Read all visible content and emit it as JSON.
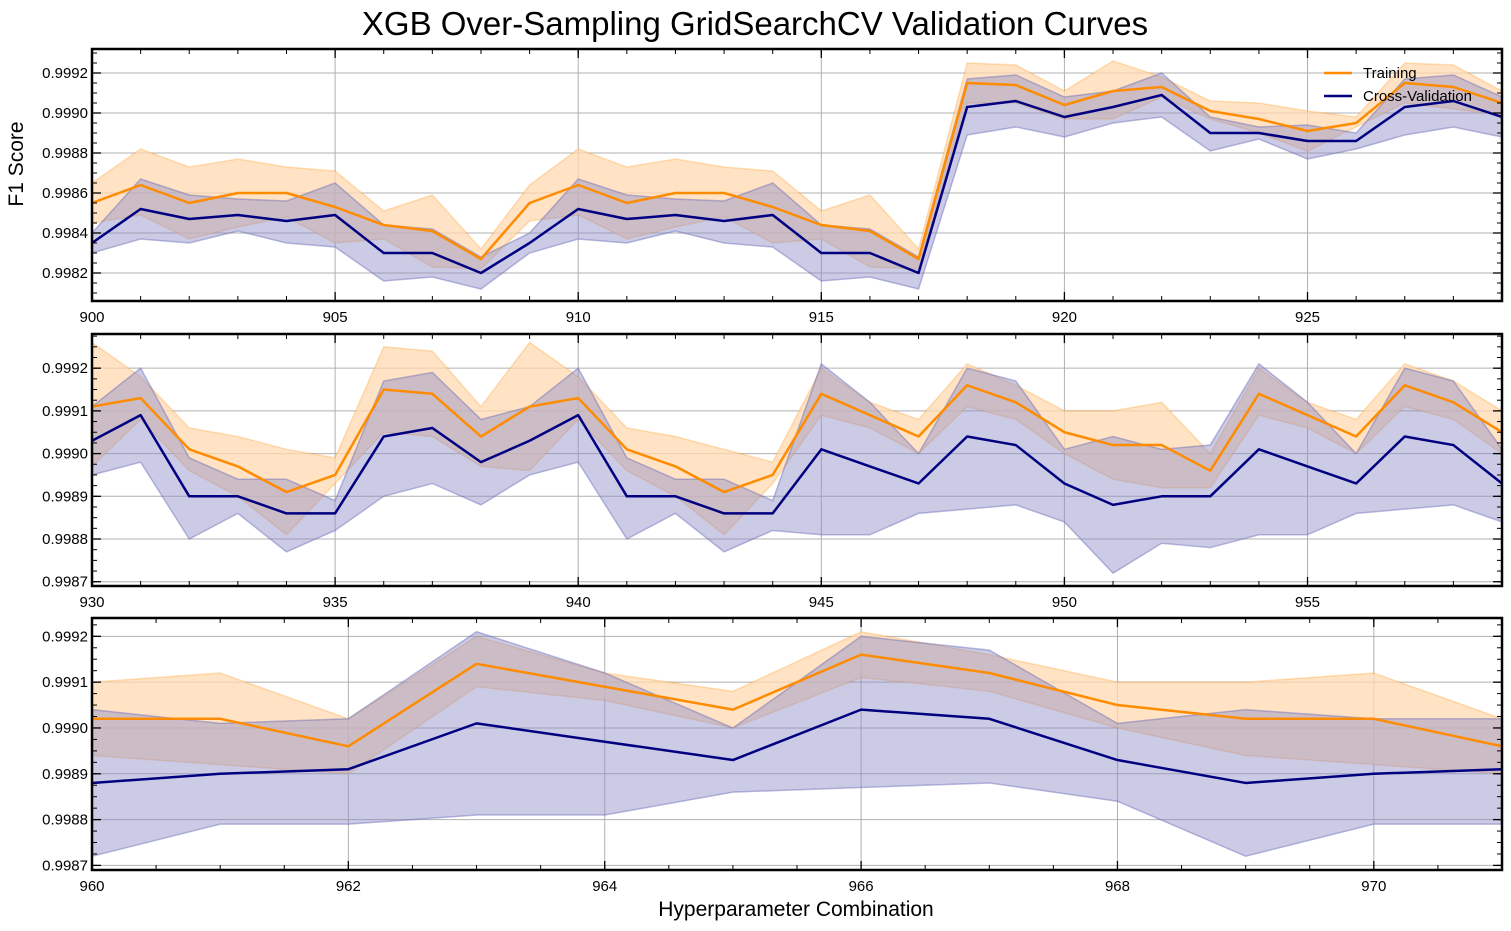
{
  "chart_data": {
    "type": "line",
    "title": "XGB Over-Sampling GridSearchCV Validation Curves",
    "xlabel": "Hyperparameter Combination",
    "ylabel": "F1 Score",
    "grid": true,
    "legend": {
      "placement": "top-right",
      "entries": [
        {
          "name": "Training",
          "color": "#ff8c00"
        },
        {
          "name": "Cross-Validation",
          "color": "#000080"
        }
      ]
    },
    "colors": {
      "training": "#ff8c00",
      "training_band": "#ffdab0",
      "cv": "#000080",
      "cv_band": "#8c8cc8"
    },
    "panels": [
      {
        "x": [
          900,
          901,
          902,
          903,
          904,
          905,
          906,
          907,
          908,
          909,
          910,
          911,
          912,
          913,
          914,
          915,
          916,
          917,
          918,
          919,
          920,
          921,
          922,
          923,
          924,
          925,
          926,
          927,
          928,
          929
        ],
        "xlim": [
          900,
          929
        ],
        "ylim": [
          0.99806,
          0.99932
        ],
        "xticks": [
          900,
          905,
          910,
          915,
          920,
          925
        ],
        "yticks": [
          0.9982,
          0.9984,
          0.9986,
          0.9988,
          0.999,
          0.9992
        ],
        "ytick_labels": [
          "0.9982",
          "0.9984",
          "0.9986",
          "0.9988",
          "0.9990",
          "0.9992"
        ],
        "train_mean": [
          0.99855,
          0.99864,
          0.99855,
          0.9986,
          0.9986,
          0.99853,
          0.99844,
          0.99841,
          0.99827,
          0.99855,
          0.99864,
          0.99855,
          0.9986,
          0.9986,
          0.99853,
          0.99844,
          0.99841,
          0.99827,
          0.99915,
          0.99914,
          0.99904,
          0.99911,
          0.99913,
          0.99901,
          0.99897,
          0.99891,
          0.99895,
          0.99915,
          0.99913,
          0.99905
        ],
        "train_upper": [
          0.99865,
          0.99882,
          0.99873,
          0.99877,
          0.99873,
          0.99871,
          0.99851,
          0.99859,
          0.99832,
          0.99864,
          0.99882,
          0.99873,
          0.99877,
          0.99873,
          0.99871,
          0.99851,
          0.99859,
          0.99832,
          0.99925,
          0.99924,
          0.99911,
          0.99926,
          0.99918,
          0.99906,
          0.99905,
          0.99901,
          0.99898,
          0.99925,
          0.99924,
          0.99911
        ],
        "train_lower": [
          0.99845,
          0.99849,
          0.99837,
          0.99843,
          0.99848,
          0.99835,
          0.99837,
          0.99823,
          0.99822,
          0.99846,
          0.99849,
          0.99837,
          0.99843,
          0.99848,
          0.99835,
          0.99837,
          0.99823,
          0.99822,
          0.99905,
          0.99905,
          0.99897,
          0.99897,
          0.99908,
          0.99897,
          0.9989,
          0.99881,
          0.99893,
          0.99905,
          0.99902,
          0.99899
        ],
        "cv_mean": [
          0.99835,
          0.99852,
          0.99847,
          0.99849,
          0.99846,
          0.99849,
          0.9983,
          0.9983,
          0.9982,
          0.99835,
          0.99852,
          0.99847,
          0.99849,
          0.99846,
          0.99849,
          0.9983,
          0.9983,
          0.9982,
          0.99903,
          0.99906,
          0.99898,
          0.99903,
          0.99909,
          0.9989,
          0.9989,
          0.99886,
          0.99886,
          0.99903,
          0.99906,
          0.99898
        ],
        "cv_upper": [
          0.9984,
          0.99867,
          0.99859,
          0.99857,
          0.99856,
          0.99865,
          0.99844,
          0.99842,
          0.99828,
          0.9984,
          0.99867,
          0.99859,
          0.99857,
          0.99856,
          0.99865,
          0.99844,
          0.99842,
          0.99828,
          0.99917,
          0.99919,
          0.99908,
          0.99911,
          0.9992,
          0.99898,
          0.99893,
          0.99894,
          0.9989,
          0.99917,
          0.99919,
          0.99908
        ],
        "cv_lower": [
          0.9983,
          0.99837,
          0.99835,
          0.99841,
          0.99835,
          0.99833,
          0.99816,
          0.99818,
          0.99812,
          0.9983,
          0.99837,
          0.99835,
          0.99841,
          0.99835,
          0.99833,
          0.99816,
          0.99818,
          0.99812,
          0.99889,
          0.99893,
          0.99888,
          0.99895,
          0.99898,
          0.99881,
          0.99887,
          0.99877,
          0.99882,
          0.99889,
          0.99893,
          0.99888
        ]
      },
      {
        "x": [
          930,
          931,
          932,
          933,
          934,
          935,
          936,
          937,
          938,
          939,
          940,
          941,
          942,
          943,
          944,
          945,
          946,
          947,
          948,
          949,
          950,
          951,
          952,
          953,
          954,
          955,
          956,
          957,
          958,
          959
        ],
        "xlim": [
          930,
          959
        ],
        "ylim": [
          0.99869,
          0.99928
        ],
        "xticks": [
          930,
          935,
          940,
          945,
          950,
          955
        ],
        "yticks": [
          0.9987,
          0.9988,
          0.9989,
          0.999,
          0.9991,
          0.9992
        ],
        "ytick_labels": [
          "0.9987",
          "0.9988",
          "0.9989",
          "0.9990",
          "0.9991",
          "0.9992"
        ],
        "train_mean": [
          0.99911,
          0.99913,
          0.99901,
          0.99897,
          0.99891,
          0.99895,
          0.99915,
          0.99914,
          0.99904,
          0.99911,
          0.99913,
          0.99901,
          0.99897,
          0.99891,
          0.99895,
          0.99914,
          0.99909,
          0.99904,
          0.99916,
          0.99912,
          0.99905,
          0.99902,
          0.99902,
          0.99896,
          0.99914,
          0.99909,
          0.99904,
          0.99916,
          0.99912,
          0.99905
        ],
        "train_upper": [
          0.99926,
          0.99918,
          0.99906,
          0.99904,
          0.99901,
          0.99899,
          0.99925,
          0.99924,
          0.99911,
          0.99926,
          0.99918,
          0.99906,
          0.99904,
          0.99901,
          0.99898,
          0.9992,
          0.99912,
          0.99908,
          0.99921,
          0.99916,
          0.9991,
          0.9991,
          0.99912,
          0.999,
          0.9992,
          0.99912,
          0.99908,
          0.99921,
          0.99917,
          0.9991
        ],
        "train_lower": [
          0.99897,
          0.99908,
          0.99896,
          0.9989,
          0.99881,
          0.99893,
          0.99905,
          0.99904,
          0.99897,
          0.99896,
          0.99908,
          0.99896,
          0.9989,
          0.99881,
          0.99893,
          0.99909,
          0.99906,
          0.999,
          0.99911,
          0.99908,
          0.999,
          0.99894,
          0.99892,
          0.99892,
          0.99909,
          0.99906,
          0.999,
          0.99911,
          0.99908,
          0.999
        ],
        "cv_mean": [
          0.99903,
          0.99909,
          0.9989,
          0.9989,
          0.99886,
          0.99886,
          0.99904,
          0.99906,
          0.99898,
          0.99903,
          0.99909,
          0.9989,
          0.9989,
          0.99886,
          0.99886,
          0.99901,
          0.99897,
          0.99893,
          0.99904,
          0.99902,
          0.99893,
          0.99888,
          0.9989,
          0.9989,
          0.99901,
          0.99897,
          0.99893,
          0.99904,
          0.99902,
          0.99893
        ],
        "cv_upper": [
          0.99911,
          0.9992,
          0.99899,
          0.99894,
          0.99894,
          0.99889,
          0.99917,
          0.99919,
          0.99908,
          0.99911,
          0.9992,
          0.99899,
          0.99894,
          0.99894,
          0.99889,
          0.99921,
          0.99912,
          0.999,
          0.9992,
          0.99917,
          0.99901,
          0.99904,
          0.99901,
          0.99902,
          0.99921,
          0.99912,
          0.999,
          0.9992,
          0.99917,
          0.99901
        ],
        "cv_lower": [
          0.99895,
          0.99898,
          0.9988,
          0.99886,
          0.99877,
          0.99882,
          0.9989,
          0.99893,
          0.99888,
          0.99895,
          0.99898,
          0.9988,
          0.99886,
          0.99877,
          0.99882,
          0.99881,
          0.99881,
          0.99886,
          0.99887,
          0.99888,
          0.99884,
          0.99872,
          0.99879,
          0.99878,
          0.99881,
          0.99881,
          0.99886,
          0.99887,
          0.99888,
          0.99884
        ]
      },
      {
        "x": [
          960,
          961,
          962,
          963,
          964,
          965,
          966,
          967,
          968,
          969,
          970,
          971
        ],
        "xlim": [
          960,
          971
        ],
        "ylim": [
          0.99869,
          0.99924
        ],
        "xticks": [
          960,
          962,
          964,
          966,
          968,
          970
        ],
        "yticks": [
          0.9987,
          0.9988,
          0.9989,
          0.999,
          0.9991,
          0.9992
        ],
        "ytick_labels": [
          "0.9987",
          "0.9988",
          "0.9989",
          "0.9990",
          "0.9991",
          "0.9992"
        ],
        "train_mean": [
          0.99902,
          0.99902,
          0.99896,
          0.99914,
          0.99909,
          0.99904,
          0.99916,
          0.99912,
          0.99905,
          0.99902,
          0.99902,
          0.99896
        ],
        "train_upper": [
          0.9991,
          0.99912,
          0.99902,
          0.9992,
          0.99912,
          0.99908,
          0.99921,
          0.99916,
          0.9991,
          0.9991,
          0.99912,
          0.99902
        ],
        "train_lower": [
          0.99894,
          0.99892,
          0.9989,
          0.99909,
          0.99906,
          0.999,
          0.99911,
          0.99908,
          0.999,
          0.99894,
          0.99892,
          0.9989
        ],
        "cv_mean": [
          0.99888,
          0.9989,
          0.99891,
          0.99901,
          0.99897,
          0.99893,
          0.99904,
          0.99902,
          0.99893,
          0.99888,
          0.9989,
          0.99891
        ],
        "cv_upper": [
          0.99904,
          0.99901,
          0.99902,
          0.99921,
          0.99912,
          0.999,
          0.9992,
          0.99917,
          0.99901,
          0.99904,
          0.99902,
          0.99902
        ],
        "cv_lower": [
          0.99872,
          0.99879,
          0.99879,
          0.99881,
          0.99881,
          0.99886,
          0.99887,
          0.99888,
          0.99884,
          0.99872,
          0.99879,
          0.99879
        ]
      }
    ]
  }
}
